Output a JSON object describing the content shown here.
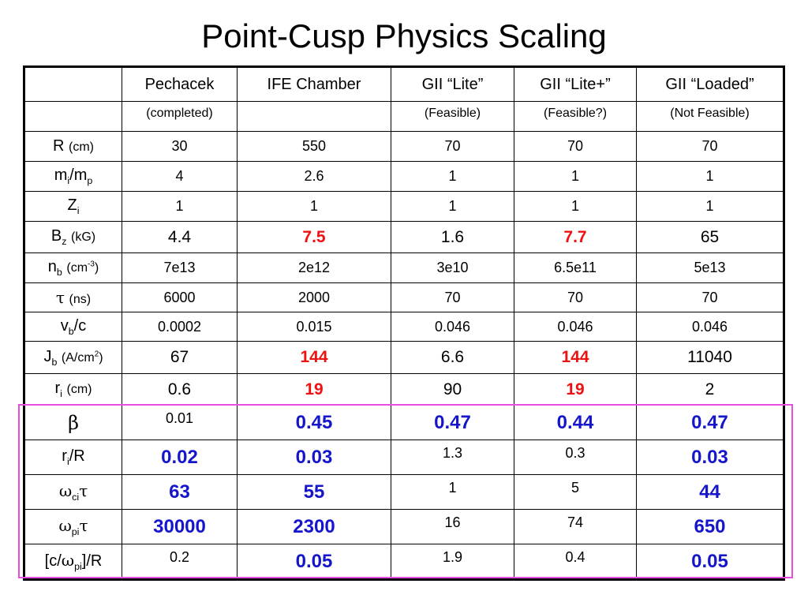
{
  "title": "Point-Cusp Physics Scaling",
  "columns": [
    "Pechacek",
    "IFE Chamber",
    "GII “Lite”",
    "GII “Lite+”",
    "GII “Loaded”"
  ],
  "feasibility": [
    "(completed)",
    "",
    "(Feasible)",
    "(Feasible?)",
    "(Not Feasible)"
  ],
  "rows": {
    "R": {
      "unit": "(cm)",
      "values": [
        "30",
        "550",
        "70",
        "70",
        "70"
      ]
    },
    "mi_mp": {
      "values": [
        "4",
        "2.6",
        "1",
        "1",
        "1"
      ]
    },
    "Zi": {
      "values": [
        "1",
        "1",
        "1",
        "1",
        "1"
      ]
    },
    "Bz": {
      "unit": "(kG)",
      "values": [
        "4.4",
        "7.5",
        "1.6",
        "7.7",
        "65"
      ]
    },
    "nb": {
      "unit_prefix": "(cm",
      "unit_exp": "-3",
      "unit_suffix": ")",
      "values": [
        "7e13",
        "2e12",
        "3e10",
        "6.5e11",
        "5e13"
      ]
    },
    "tau": {
      "unit": "(ns)",
      "values": [
        "6000",
        "2000",
        "70",
        "70",
        "70"
      ]
    },
    "vb_c": {
      "values": [
        "0.0002",
        "0.015",
        "0.046",
        "0.046",
        "0.046"
      ]
    },
    "Jb": {
      "unit_prefix": "(A/cm",
      "unit_exp": "2",
      "unit_suffix": ")",
      "values": [
        "67",
        "144",
        "6.6",
        "144",
        "11040"
      ]
    },
    "ri": {
      "unit": "(cm)",
      "values": [
        "0.6",
        "19",
        "90",
        "19",
        "2"
      ]
    },
    "beta": {
      "values": [
        "0.01",
        "0.45",
        "0.47",
        "0.44",
        "0.47"
      ]
    },
    "ri_R": {
      "values": [
        "0.02",
        "0.03",
        "1.3",
        "0.3",
        "0.03"
      ]
    },
    "wci_tau": {
      "values": [
        "63",
        "55",
        "1",
        "5",
        "44"
      ]
    },
    "wpi_tau": {
      "values": [
        "30000",
        "2300",
        "16",
        "74",
        "650"
      ]
    },
    "c_wpi_R": {
      "values": [
        "0.2",
        "0.05",
        "1.9",
        "0.4",
        "0.05"
      ]
    }
  },
  "colors": {
    "highlight_red": "#ee1111",
    "highlight_blue": "#1515cc",
    "highlight_box": "#e64de0"
  }
}
